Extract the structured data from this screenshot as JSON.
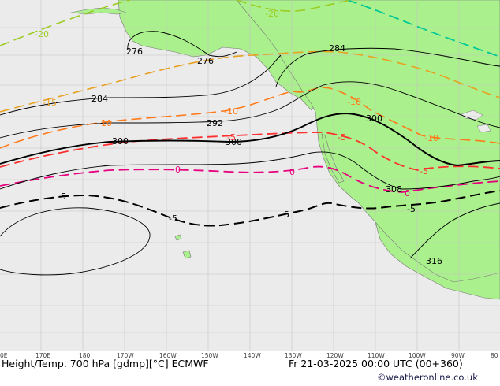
{
  "footer": {
    "left_label": "Height/Temp. 700 hPa [gdmp][°C] ECMWF",
    "right_label": "Fr 21-03-2025 00:00 UTC (00+360)"
  },
  "credit": "©weatheronline.co.uk",
  "longitude_labels": [
    "0E",
    "170E",
    "180",
    "170W",
    "160W",
    "150W",
    "140W",
    "130W",
    "120W",
    "110W",
    "100W",
    "90W",
    "80"
  ],
  "height_labels": [
    "276",
    "276",
    "284",
    "284",
    "292",
    "300",
    "300",
    "300",
    "308",
    "316"
  ],
  "temp_labels": [
    "-20",
    "-20",
    "-15",
    "-10",
    "-10",
    "-10",
    "-10",
    "-5",
    "-5",
    "-5",
    "0",
    "0",
    "0",
    "-5",
    "-5",
    "-5",
    "-5"
  ],
  "colors": {
    "ocean": "#ebebeb",
    "land": "#aaf08c",
    "grid": "#c4c4c4",
    "height_contour": "#000000",
    "temp_0": "#e6007e",
    "temp_minus5": "#ff3030",
    "temp_minus10": "#ff7a1a",
    "temp_minus15": "#e8a020",
    "temp_minus20": "#9ccc22",
    "temp_minus25": "#00c896",
    "temp_plus5": "#000000"
  }
}
